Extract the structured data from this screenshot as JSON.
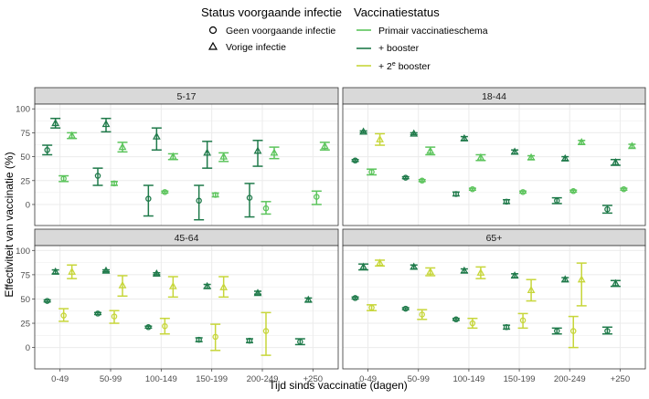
{
  "legend": {
    "status_title": "Status voorgaande infectie",
    "status_items": [
      {
        "label": "Geen voorgaande infectie",
        "shape": "circle"
      },
      {
        "label": "Vorige infectie",
        "shape": "triangle"
      }
    ],
    "vacc_title": "Vaccinatiestatus",
    "vacc_items": [
      {
        "key": "primair",
        "label": "Primair vaccinatieschema",
        "color": "#5cc45c"
      },
      {
        "key": "booster",
        "label": "+ booster",
        "color": "#1f7a4a"
      },
      {
        "key": "booster2",
        "label": "+ 2",
        "sup": "e",
        "label_after": " booster",
        "color": "#c7d63a"
      }
    ]
  },
  "colors": {
    "primair": "#5cc45c",
    "booster": "#1f7a4a",
    "booster2": "#c7d63a",
    "strip": "#d9d9d9",
    "grid": "#ebebeb",
    "panel_border": "#333333"
  },
  "chart_data": {
    "type": "scatter",
    "xlabel": "Tijd sinds vaccinatie (dagen)",
    "ylabel": "Effectiviteit van vaccinatie (%)",
    "categories": [
      "0-49",
      "50-99",
      "100-149",
      "150-199",
      "200-249",
      "+250"
    ],
    "yticks": [
      0,
      25,
      50,
      75,
      100
    ],
    "ylim": [
      -22,
      105
    ],
    "panels": [
      {
        "title": "5-17",
        "points": [
          {
            "c": 0,
            "v": "booster",
            "s": "circle",
            "y": 57,
            "lo": 52,
            "hi": 62
          },
          {
            "c": 0,
            "v": "booster",
            "s": "triangle",
            "y": 85,
            "lo": 80,
            "hi": 90
          },
          {
            "c": 0,
            "v": "primair",
            "s": "circle",
            "y": 27,
            "lo": 24,
            "hi": 30
          },
          {
            "c": 0,
            "v": "primair",
            "s": "triangle",
            "y": 72,
            "lo": 69,
            "hi": 75
          },
          {
            "c": 1,
            "v": "booster",
            "s": "circle",
            "y": 30,
            "lo": 20,
            "hi": 38
          },
          {
            "c": 1,
            "v": "booster",
            "s": "triangle",
            "y": 84,
            "lo": 76,
            "hi": 90
          },
          {
            "c": 1,
            "v": "primair",
            "s": "circle",
            "y": 22,
            "lo": 20,
            "hi": 24
          },
          {
            "c": 1,
            "v": "primair",
            "s": "triangle",
            "y": 60,
            "lo": 55,
            "hi": 65
          },
          {
            "c": 2,
            "v": "booster",
            "s": "circle",
            "y": 6,
            "lo": -12,
            "hi": 20
          },
          {
            "c": 2,
            "v": "booster",
            "s": "triangle",
            "y": 71,
            "lo": 57,
            "hi": 80
          },
          {
            "c": 2,
            "v": "primair",
            "s": "circle",
            "y": 13,
            "lo": 12,
            "hi": 14
          },
          {
            "c": 2,
            "v": "primair",
            "s": "triangle",
            "y": 50,
            "lo": 47,
            "hi": 53
          },
          {
            "c": 3,
            "v": "booster",
            "s": "circle",
            "y": 4,
            "lo": -16,
            "hi": 20
          },
          {
            "c": 3,
            "v": "booster",
            "s": "triangle",
            "y": 54,
            "lo": 38,
            "hi": 66
          },
          {
            "c": 3,
            "v": "primair",
            "s": "circle",
            "y": 10,
            "lo": 8,
            "hi": 12
          },
          {
            "c": 3,
            "v": "primair",
            "s": "triangle",
            "y": 50,
            "lo": 45,
            "hi": 54
          },
          {
            "c": 4,
            "v": "booster",
            "s": "circle",
            "y": 7,
            "lo": -13,
            "hi": 22
          },
          {
            "c": 4,
            "v": "booster",
            "s": "triangle",
            "y": 56,
            "lo": 40,
            "hi": 67
          },
          {
            "c": 4,
            "v": "primair",
            "s": "circle",
            "y": -4,
            "lo": -10,
            "hi": 3
          },
          {
            "c": 4,
            "v": "primair",
            "s": "triangle",
            "y": 54,
            "lo": 48,
            "hi": 60
          },
          {
            "c": 5,
            "v": "primair",
            "s": "circle",
            "y": 8,
            "lo": 0,
            "hi": 14
          },
          {
            "c": 5,
            "v": "primair",
            "s": "triangle",
            "y": 61,
            "lo": 57,
            "hi": 65
          }
        ]
      },
      {
        "title": "18-44",
        "points": [
          {
            "c": 0,
            "v": "booster",
            "s": "circle",
            "y": 46,
            "lo": 45,
            "hi": 47
          },
          {
            "c": 0,
            "v": "booster",
            "s": "triangle",
            "y": 76,
            "lo": 75,
            "hi": 77
          },
          {
            "c": 0,
            "v": "primair",
            "s": "circle",
            "y": 34,
            "lo": 31,
            "hi": 37
          },
          {
            "c": 0,
            "v": "booster2",
            "s": "triangle",
            "y": 68,
            "lo": 62,
            "hi": 74
          },
          {
            "c": 1,
            "v": "booster",
            "s": "circle",
            "y": 28,
            "lo": 27,
            "hi": 29
          },
          {
            "c": 1,
            "v": "booster",
            "s": "triangle",
            "y": 74,
            "lo": 73,
            "hi": 75
          },
          {
            "c": 1,
            "v": "primair",
            "s": "circle",
            "y": 25,
            "lo": 24,
            "hi": 26
          },
          {
            "c": 1,
            "v": "primair",
            "s": "triangle",
            "y": 56,
            "lo": 52,
            "hi": 60
          },
          {
            "c": 2,
            "v": "booster",
            "s": "circle",
            "y": 11,
            "lo": 9,
            "hi": 13
          },
          {
            "c": 2,
            "v": "booster",
            "s": "triangle",
            "y": 69,
            "lo": 67,
            "hi": 71
          },
          {
            "c": 2,
            "v": "primair",
            "s": "circle",
            "y": 16,
            "lo": 15,
            "hi": 17
          },
          {
            "c": 2,
            "v": "primair",
            "s": "triangle",
            "y": 49,
            "lo": 46,
            "hi": 52
          },
          {
            "c": 3,
            "v": "booster",
            "s": "circle",
            "y": 3,
            "lo": 1,
            "hi": 5
          },
          {
            "c": 3,
            "v": "booster",
            "s": "triangle",
            "y": 55,
            "lo": 53,
            "hi": 57
          },
          {
            "c": 3,
            "v": "primair",
            "s": "circle",
            "y": 13,
            "lo": 12,
            "hi": 14
          },
          {
            "c": 3,
            "v": "primair",
            "s": "triangle",
            "y": 49,
            "lo": 47,
            "hi": 51
          },
          {
            "c": 4,
            "v": "booster",
            "s": "circle",
            "y": 4,
            "lo": 1,
            "hi": 7
          },
          {
            "c": 4,
            "v": "booster",
            "s": "triangle",
            "y": 48,
            "lo": 46,
            "hi": 50
          },
          {
            "c": 4,
            "v": "primair",
            "s": "circle",
            "y": 14,
            "lo": 13,
            "hi": 15
          },
          {
            "c": 4,
            "v": "primair",
            "s": "triangle",
            "y": 65,
            "lo": 63,
            "hi": 67
          },
          {
            "c": 5,
            "v": "booster",
            "s": "circle",
            "y": -5,
            "lo": -9,
            "hi": -1
          },
          {
            "c": 5,
            "v": "booster",
            "s": "triangle",
            "y": 44,
            "lo": 41,
            "hi": 47
          },
          {
            "c": 5,
            "v": "primair",
            "s": "circle",
            "y": 16,
            "lo": 15,
            "hi": 17
          },
          {
            "c": 5,
            "v": "primair",
            "s": "triangle",
            "y": 61,
            "lo": 59,
            "hi": 63
          }
        ]
      },
      {
        "title": "45-64",
        "points": [
          {
            "c": 0,
            "v": "booster",
            "s": "circle",
            "y": 48,
            "lo": 47,
            "hi": 49
          },
          {
            "c": 0,
            "v": "booster",
            "s": "triangle",
            "y": 78,
            "lo": 76,
            "hi": 80
          },
          {
            "c": 0,
            "v": "booster2",
            "s": "circle",
            "y": 33,
            "lo": 27,
            "hi": 40
          },
          {
            "c": 0,
            "v": "booster2",
            "s": "triangle",
            "y": 78,
            "lo": 71,
            "hi": 85
          },
          {
            "c": 1,
            "v": "booster",
            "s": "circle",
            "y": 35,
            "lo": 34,
            "hi": 36
          },
          {
            "c": 1,
            "v": "booster",
            "s": "triangle",
            "y": 79,
            "lo": 78,
            "hi": 80
          },
          {
            "c": 1,
            "v": "booster2",
            "s": "circle",
            "y": 32,
            "lo": 25,
            "hi": 38
          },
          {
            "c": 1,
            "v": "booster2",
            "s": "triangle",
            "y": 64,
            "lo": 53,
            "hi": 74
          },
          {
            "c": 2,
            "v": "booster",
            "s": "circle",
            "y": 21,
            "lo": 20,
            "hi": 22
          },
          {
            "c": 2,
            "v": "booster",
            "s": "triangle",
            "y": 76,
            "lo": 75,
            "hi": 77
          },
          {
            "c": 2,
            "v": "booster2",
            "s": "circle",
            "y": 22,
            "lo": 14,
            "hi": 30
          },
          {
            "c": 2,
            "v": "booster2",
            "s": "triangle",
            "y": 63,
            "lo": 52,
            "hi": 73
          },
          {
            "c": 3,
            "v": "booster",
            "s": "circle",
            "y": 8,
            "lo": 6,
            "hi": 10
          },
          {
            "c": 3,
            "v": "booster",
            "s": "triangle",
            "y": 63,
            "lo": 61,
            "hi": 65
          },
          {
            "c": 3,
            "v": "booster2",
            "s": "circle",
            "y": 11,
            "lo": -3,
            "hi": 24
          },
          {
            "c": 3,
            "v": "booster2",
            "s": "triangle",
            "y": 62,
            "lo": 52,
            "hi": 73
          },
          {
            "c": 4,
            "v": "booster",
            "s": "circle",
            "y": 7,
            "lo": 5,
            "hi": 9
          },
          {
            "c": 4,
            "v": "booster",
            "s": "triangle",
            "y": 56,
            "lo": 55,
            "hi": 58
          },
          {
            "c": 4,
            "v": "booster2",
            "s": "circle",
            "y": 17,
            "lo": -8,
            "hi": 36
          },
          {
            "c": 5,
            "v": "booster",
            "s": "circle",
            "y": 6,
            "lo": 3,
            "hi": 9
          },
          {
            "c": 5,
            "v": "booster",
            "s": "triangle",
            "y": 49,
            "lo": 47,
            "hi": 51
          }
        ]
      },
      {
        "title": "65+",
        "points": [
          {
            "c": 0,
            "v": "booster",
            "s": "circle",
            "y": 51,
            "lo": 50,
            "hi": 52
          },
          {
            "c": 0,
            "v": "booster",
            "s": "triangle",
            "y": 83,
            "lo": 80,
            "hi": 86
          },
          {
            "c": 0,
            "v": "booster2",
            "s": "circle",
            "y": 41,
            "lo": 38,
            "hi": 44
          },
          {
            "c": 0,
            "v": "booster2",
            "s": "triangle",
            "y": 87,
            "lo": 84,
            "hi": 90
          },
          {
            "c": 1,
            "v": "booster",
            "s": "circle",
            "y": 40,
            "lo": 39,
            "hi": 41
          },
          {
            "c": 1,
            "v": "booster",
            "s": "triangle",
            "y": 83,
            "lo": 81,
            "hi": 85
          },
          {
            "c": 1,
            "v": "booster2",
            "s": "circle",
            "y": 34,
            "lo": 29,
            "hi": 39
          },
          {
            "c": 1,
            "v": "booster2",
            "s": "triangle",
            "y": 78,
            "lo": 74,
            "hi": 82
          },
          {
            "c": 2,
            "v": "booster",
            "s": "circle",
            "y": 29,
            "lo": 28,
            "hi": 30
          },
          {
            "c": 2,
            "v": "booster",
            "s": "triangle",
            "y": 79,
            "lo": 77,
            "hi": 81
          },
          {
            "c": 2,
            "v": "booster2",
            "s": "circle",
            "y": 25,
            "lo": 20,
            "hi": 30
          },
          {
            "c": 2,
            "v": "booster2",
            "s": "triangle",
            "y": 77,
            "lo": 71,
            "hi": 83
          },
          {
            "c": 3,
            "v": "booster",
            "s": "circle",
            "y": 21,
            "lo": 19,
            "hi": 23
          },
          {
            "c": 3,
            "v": "booster",
            "s": "triangle",
            "y": 74,
            "lo": 72,
            "hi": 76
          },
          {
            "c": 3,
            "v": "booster2",
            "s": "circle",
            "y": 28,
            "lo": 20,
            "hi": 35
          },
          {
            "c": 3,
            "v": "booster2",
            "s": "triangle",
            "y": 59,
            "lo": 48,
            "hi": 70
          },
          {
            "c": 4,
            "v": "booster",
            "s": "circle",
            "y": 17,
            "lo": 14,
            "hi": 20
          },
          {
            "c": 4,
            "v": "booster",
            "s": "triangle",
            "y": 70,
            "lo": 68,
            "hi": 72
          },
          {
            "c": 4,
            "v": "booster2",
            "s": "circle",
            "y": 17,
            "lo": 0,
            "hi": 32
          },
          {
            "c": 4,
            "v": "booster2",
            "s": "triangle",
            "y": 70,
            "lo": 43,
            "hi": 87
          },
          {
            "c": 5,
            "v": "booster",
            "s": "circle",
            "y": 17,
            "lo": 14,
            "hi": 21
          },
          {
            "c": 5,
            "v": "booster",
            "s": "triangle",
            "y": 66,
            "lo": 63,
            "hi": 69
          }
        ]
      }
    ]
  }
}
